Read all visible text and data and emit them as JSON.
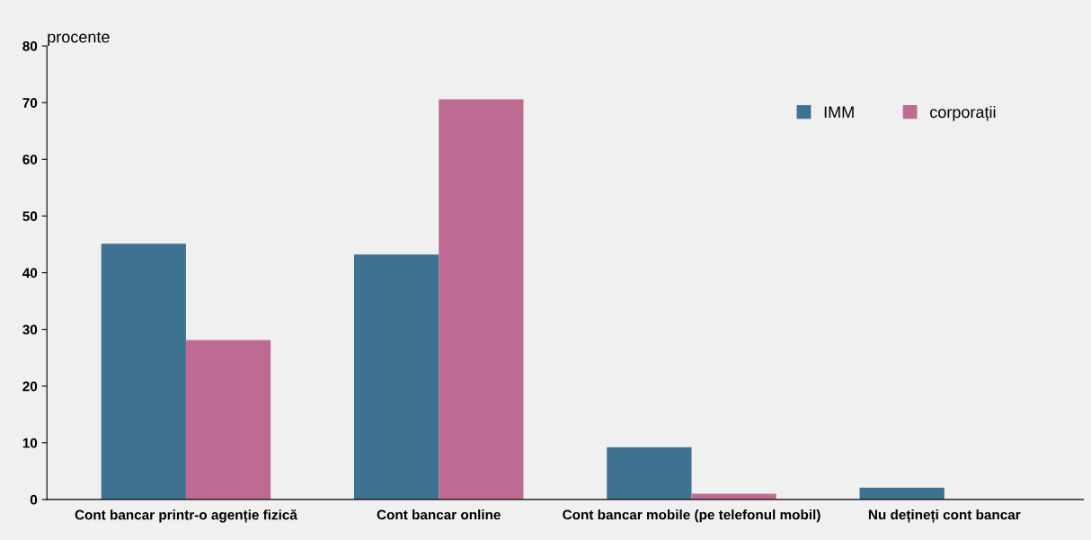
{
  "chart_data": {
    "type": "bar",
    "ylabel": "procente",
    "categories": [
      "Cont bancar printr-o agenție fizică",
      "Cont bancar online",
      "Cont bancar mobile (pe telefonul mobil)",
      "Nu dețineți cont bancar"
    ],
    "series": [
      {
        "name": "IMM",
        "color": "#3d7390",
        "values": [
          45.1,
          43.2,
          9.2,
          2.1
        ]
      },
      {
        "name": "corporații",
        "color": "#be6b93",
        "values": [
          28.1,
          70.6,
          1.0,
          0
        ]
      }
    ],
    "ylim": [
      0,
      80
    ],
    "yticks": [
      0,
      10,
      20,
      30,
      40,
      50,
      60,
      70,
      80
    ],
    "grid": false,
    "legend": "top right"
  }
}
